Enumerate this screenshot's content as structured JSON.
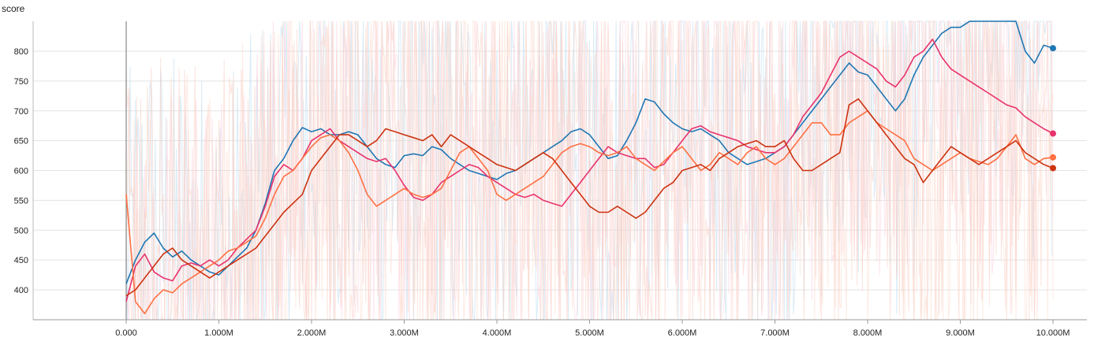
{
  "chart_data": {
    "type": "line",
    "title": "score",
    "xlabel": "",
    "ylabel": "",
    "xlim": [
      0,
      10000000
    ],
    "ylim": [
      350,
      850
    ],
    "grid": true,
    "x_ticks": [
      {
        "value": 0,
        "label": "0.000"
      },
      {
        "value": 1000000,
        "label": "1.000M"
      },
      {
        "value": 2000000,
        "label": "2.000M"
      },
      {
        "value": 3000000,
        "label": "3.000M"
      },
      {
        "value": 4000000,
        "label": "4.000M"
      },
      {
        "value": 5000000,
        "label": "5.000M"
      },
      {
        "value": 6000000,
        "label": "6.000M"
      },
      {
        "value": 7000000,
        "label": "7.000M"
      },
      {
        "value": 8000000,
        "label": "8.000M"
      },
      {
        "value": 9000000,
        "label": "9.000M"
      },
      {
        "value": 10000000,
        "label": "10.000M"
      }
    ],
    "y_ticks": [
      {
        "value": 400,
        "label": "400"
      },
      {
        "value": 450,
        "label": "450"
      },
      {
        "value": 500,
        "label": "500"
      },
      {
        "value": 550,
        "label": "550"
      },
      {
        "value": 600,
        "label": "600"
      },
      {
        "value": 650,
        "label": "650"
      },
      {
        "value": 700,
        "label": "700"
      },
      {
        "value": 750,
        "label": "750"
      },
      {
        "value": 800,
        "label": "800"
      }
    ],
    "series": [
      {
        "color": "#1f77b4",
        "raw_color": "#b9daf0",
        "x": [
          0,
          100000,
          200000,
          300000,
          400000,
          500000,
          600000,
          700000,
          800000,
          900000,
          1000000,
          1100000,
          1200000,
          1300000,
          1400000,
          1500000,
          1600000,
          1700000,
          1800000,
          1900000,
          2000000,
          2100000,
          2200000,
          2300000,
          2400000,
          2500000,
          2600000,
          2700000,
          2800000,
          2900000,
          3000000,
          3100000,
          3200000,
          3300000,
          3400000,
          3500000,
          3600000,
          3700000,
          3800000,
          3900000,
          4000000,
          4100000,
          4200000,
          4300000,
          4400000,
          4500000,
          4600000,
          4700000,
          4800000,
          4900000,
          5000000,
          5100000,
          5200000,
          5300000,
          5400000,
          5500000,
          5600000,
          5700000,
          5800000,
          5900000,
          6000000,
          6100000,
          6200000,
          6300000,
          6400000,
          6500000,
          6600000,
          6700000,
          6800000,
          6900000,
          7000000,
          7100000,
          7200000,
          7300000,
          7400000,
          7500000,
          7600000,
          7700000,
          7800000,
          7900000,
          8000000,
          8100000,
          8200000,
          8300000,
          8400000,
          8500000,
          8600000,
          8700000,
          8800000,
          8900000,
          9000000,
          9100000,
          9200000,
          9300000,
          9400000,
          9500000,
          9600000,
          9700000,
          9800000,
          9900000,
          10000000
        ],
        "values": [
          410,
          450,
          480,
          495,
          470,
          455,
          465,
          450,
          440,
          430,
          425,
          440,
          455,
          470,
          500,
          545,
          600,
          620,
          650,
          672,
          665,
          670,
          660,
          660,
          665,
          660,
          640,
          620,
          610,
          605,
          625,
          628,
          625,
          640,
          635,
          620,
          610,
          600,
          595,
          590,
          585,
          595,
          600,
          610,
          620,
          630,
          640,
          650,
          665,
          670,
          660,
          640,
          620,
          625,
          650,
          680,
          720,
          715,
          695,
          680,
          670,
          665,
          670,
          660,
          650,
          630,
          620,
          610,
          615,
          620,
          630,
          640,
          660,
          680,
          700,
          720,
          740,
          760,
          780,
          765,
          760,
          740,
          720,
          700,
          720,
          760,
          790,
          810,
          830,
          840,
          840,
          850,
          855,
          860,
          860,
          860,
          850,
          800,
          780,
          810,
          805
        ]
      },
      {
        "color": "#e8336d",
        "raw_color": "#fbcfdd",
        "x": [
          0,
          100000,
          200000,
          300000,
          400000,
          500000,
          600000,
          700000,
          800000,
          900000,
          1000000,
          1100000,
          1200000,
          1300000,
          1400000,
          1500000,
          1600000,
          1700000,
          1800000,
          1900000,
          2000000,
          2100000,
          2200000,
          2300000,
          2400000,
          2500000,
          2600000,
          2700000,
          2800000,
          2900000,
          3000000,
          3100000,
          3200000,
          3300000,
          3400000,
          3500000,
          3600000,
          3700000,
          3800000,
          3900000,
          4000000,
          4100000,
          4200000,
          4300000,
          4400000,
          4500000,
          4600000,
          4700000,
          4800000,
          4900000,
          5000000,
          5100000,
          5200000,
          5300000,
          5400000,
          5500000,
          5600000,
          5700000,
          5800000,
          5900000,
          6000000,
          6100000,
          6200000,
          6300000,
          6400000,
          6500000,
          6600000,
          6700000,
          6800000,
          6900000,
          7000000,
          7100000,
          7200000,
          7300000,
          7400000,
          7500000,
          7600000,
          7700000,
          7800000,
          7900000,
          8000000,
          8100000,
          8200000,
          8300000,
          8400000,
          8500000,
          8600000,
          8700000,
          8800000,
          8900000,
          9000000,
          9100000,
          9200000,
          9300000,
          9400000,
          9500000,
          9600000,
          9700000,
          9800000,
          9900000,
          10000000
        ],
        "values": [
          380,
          440,
          460,
          430,
          420,
          415,
          440,
          445,
          440,
          450,
          440,
          450,
          470,
          485,
          500,
          540,
          590,
          610,
          600,
          620,
          650,
          660,
          670,
          650,
          640,
          630,
          620,
          615,
          620,
          600,
          575,
          555,
          550,
          560,
          580,
          590,
          600,
          610,
          605,
          590,
          580,
          570,
          560,
          555,
          560,
          550,
          545,
          540,
          560,
          580,
          600,
          620,
          640,
          630,
          625,
          620,
          620,
          605,
          610,
          630,
          650,
          670,
          675,
          665,
          660,
          655,
          650,
          640,
          635,
          630,
          630,
          640,
          660,
          690,
          710,
          730,
          760,
          790,
          800,
          790,
          780,
          770,
          750,
          740,
          760,
          790,
          800,
          820,
          790,
          770,
          760,
          750,
          740,
          730,
          720,
          710,
          705,
          690,
          680,
          670,
          662
        ]
      },
      {
        "color": "#ff7043",
        "raw_color": "#fdd9cb",
        "x": [
          0,
          100000,
          200000,
          300000,
          400000,
          500000,
          600000,
          700000,
          800000,
          900000,
          1000000,
          1100000,
          1200000,
          1300000,
          1400000,
          1500000,
          1600000,
          1700000,
          1800000,
          1900000,
          2000000,
          2100000,
          2200000,
          2300000,
          2400000,
          2500000,
          2600000,
          2700000,
          2800000,
          2900000,
          3000000,
          3100000,
          3200000,
          3300000,
          3400000,
          3500000,
          3600000,
          3700000,
          3800000,
          3900000,
          4000000,
          4100000,
          4200000,
          4300000,
          4400000,
          4500000,
          4600000,
          4700000,
          4800000,
          4900000,
          5000000,
          5100000,
          5200000,
          5300000,
          5400000,
          5500000,
          5600000,
          5700000,
          5800000,
          5900000,
          6000000,
          6100000,
          6200000,
          6300000,
          6400000,
          6500000,
          6600000,
          6700000,
          6800000,
          6900000,
          7000000,
          7100000,
          7200000,
          7300000,
          7400000,
          7500000,
          7600000,
          7700000,
          7800000,
          7900000,
          8000000,
          8100000,
          8200000,
          8300000,
          8400000,
          8500000,
          8600000,
          8700000,
          8800000,
          8900000,
          9000000,
          9100000,
          9200000,
          9300000,
          9400000,
          9500000,
          9600000,
          9700000,
          9800000,
          9900000,
          10000000
        ],
        "values": [
          560,
          380,
          360,
          385,
          400,
          395,
          410,
          420,
          430,
          440,
          450,
          465,
          470,
          480,
          490,
          520,
          560,
          590,
          600,
          620,
          640,
          655,
          660,
          650,
          630,
          600,
          560,
          540,
          550,
          560,
          570,
          560,
          555,
          560,
          570,
          600,
          630,
          640,
          620,
          600,
          560,
          550,
          560,
          570,
          580,
          590,
          610,
          630,
          640,
          645,
          640,
          630,
          625,
          630,
          640,
          620,
          610,
          600,
          615,
          630,
          640,
          620,
          600,
          610,
          630,
          620,
          610,
          630,
          640,
          620,
          610,
          620,
          640,
          660,
          680,
          680,
          660,
          660,
          680,
          690,
          700,
          680,
          670,
          660,
          650,
          620,
          610,
          600,
          610,
          620,
          630,
          620,
          615,
          610,
          620,
          640,
          660,
          620,
          610,
          620,
          622
        ]
      },
      {
        "color": "#cc3311",
        "raw_color": "#f7cdc2",
        "x": [
          0,
          100000,
          200000,
          300000,
          400000,
          500000,
          600000,
          700000,
          800000,
          900000,
          1000000,
          1100000,
          1200000,
          1300000,
          1400000,
          1500000,
          1600000,
          1700000,
          1800000,
          1900000,
          2000000,
          2100000,
          2200000,
          2300000,
          2400000,
          2500000,
          2600000,
          2700000,
          2800000,
          2900000,
          3000000,
          3100000,
          3200000,
          3300000,
          3400000,
          3500000,
          3600000,
          3700000,
          3800000,
          3900000,
          4000000,
          4100000,
          4200000,
          4300000,
          4400000,
          4500000,
          4600000,
          4700000,
          4800000,
          4900000,
          5000000,
          5100000,
          5200000,
          5300000,
          5400000,
          5500000,
          5600000,
          5700000,
          5800000,
          5900000,
          6000000,
          6100000,
          6200000,
          6300000,
          6400000,
          6500000,
          6600000,
          6700000,
          6800000,
          6900000,
          7000000,
          7100000,
          7200000,
          7300000,
          7400000,
          7500000,
          7600000,
          7700000,
          7800000,
          7900000,
          8000000,
          8100000,
          8200000,
          8300000,
          8400000,
          8500000,
          8600000,
          8700000,
          8800000,
          8900000,
          9000000,
          9100000,
          9200000,
          9300000,
          9400000,
          9500000,
          9600000,
          9700000,
          9800000,
          9900000,
          10000000
        ],
        "values": [
          390,
          400,
          420,
          440,
          460,
          470,
          450,
          440,
          430,
          420,
          430,
          440,
          450,
          460,
          470,
          490,
          510,
          530,
          545,
          560,
          600,
          620,
          640,
          660,
          660,
          650,
          640,
          650,
          670,
          665,
          660,
          655,
          650,
          660,
          640,
          660,
          650,
          640,
          630,
          620,
          610,
          605,
          600,
          610,
          620,
          630,
          620,
          600,
          580,
          560,
          540,
          530,
          530,
          540,
          530,
          520,
          530,
          550,
          570,
          580,
          600,
          605,
          610,
          600,
          620,
          630,
          640,
          645,
          650,
          640,
          640,
          650,
          620,
          600,
          600,
          610,
          620,
          630,
          710,
          720,
          700,
          680,
          660,
          640,
          620,
          610,
          580,
          600,
          620,
          640,
          630,
          620,
          610,
          620,
          630,
          640,
          650,
          630,
          620,
          610,
          604
        ]
      }
    ]
  }
}
